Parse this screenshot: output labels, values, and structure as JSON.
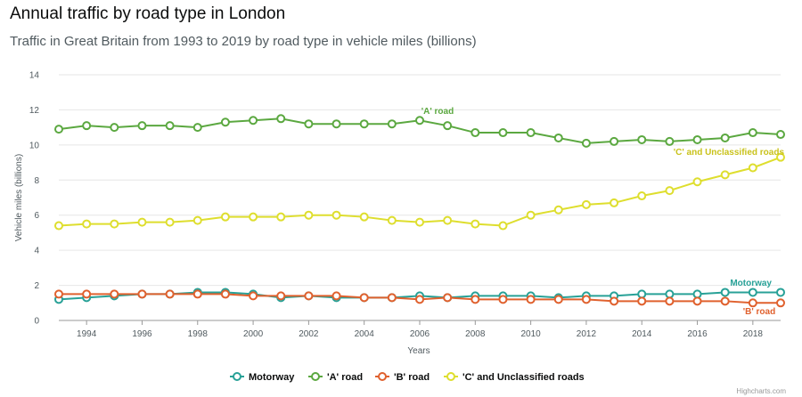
{
  "chart_data": {
    "type": "line",
    "title": "Annual traffic by road type in London",
    "subtitle": "Traffic in Great Britain from 1993 to 2019 by road type in vehicle miles (billions)",
    "xlabel": "Years",
    "ylabel": "Vehicle miles (billions)",
    "xlim": [
      1993,
      2019
    ],
    "ylim": [
      0,
      14
    ],
    "yticks": [
      0,
      2,
      4,
      6,
      8,
      10,
      12,
      14
    ],
    "xticks": [
      1994,
      1996,
      1998,
      2000,
      2002,
      2004,
      2006,
      2008,
      2010,
      2012,
      2014,
      2016,
      2018
    ],
    "grid": "horizontal",
    "legend": "bottom-center",
    "x": [
      1993,
      1994,
      1995,
      1996,
      1997,
      1998,
      1999,
      2000,
      2001,
      2002,
      2003,
      2004,
      2005,
      2006,
      2007,
      2008,
      2009,
      2010,
      2011,
      2012,
      2013,
      2014,
      2015,
      2016,
      2017,
      2018,
      2019
    ],
    "series": [
      {
        "name": "Motorway",
        "color": "#28a197",
        "label": "Motorway",
        "values": [
          1.2,
          1.3,
          1.4,
          1.5,
          1.5,
          1.6,
          1.6,
          1.5,
          1.3,
          1.4,
          1.3,
          1.3,
          1.3,
          1.4,
          1.3,
          1.4,
          1.4,
          1.4,
          1.3,
          1.4,
          1.4,
          1.5,
          1.5,
          1.5,
          1.6,
          1.6,
          1.6
        ]
      },
      {
        "name": "'A' road",
        "color": "#5ba840",
        "label": "'A' road",
        "values": [
          10.9,
          11.1,
          11.0,
          11.1,
          11.1,
          11.0,
          11.3,
          11.4,
          11.5,
          11.2,
          11.2,
          11.2,
          11.2,
          11.4,
          11.1,
          10.7,
          10.7,
          10.7,
          10.4,
          10.1,
          10.2,
          10.3,
          10.2,
          10.3,
          10.4,
          10.7,
          10.6
        ]
      },
      {
        "name": "'B' road",
        "color": "#e0612e",
        "label": "'B' road",
        "values": [
          1.5,
          1.5,
          1.5,
          1.5,
          1.5,
          1.5,
          1.5,
          1.4,
          1.4,
          1.4,
          1.4,
          1.3,
          1.3,
          1.2,
          1.3,
          1.2,
          1.2,
          1.2,
          1.2,
          1.2,
          1.1,
          1.1,
          1.1,
          1.1,
          1.1,
          1.0,
          1.0
        ]
      },
      {
        "name": "'C' and Unclassified roads",
        "color": "#dede2e",
        "label_color": "#c9c21b",
        "label": "'C' and Unclassified roads",
        "values": [
          5.4,
          5.5,
          5.5,
          5.6,
          5.6,
          5.7,
          5.9,
          5.9,
          5.9,
          6.0,
          6.0,
          5.9,
          5.7,
          5.6,
          5.7,
          5.5,
          5.4,
          6.0,
          6.3,
          6.6,
          6.7,
          7.1,
          7.4,
          7.9,
          8.3,
          8.7,
          9.3
        ]
      }
    ],
    "credits": "Highcharts.com"
  }
}
